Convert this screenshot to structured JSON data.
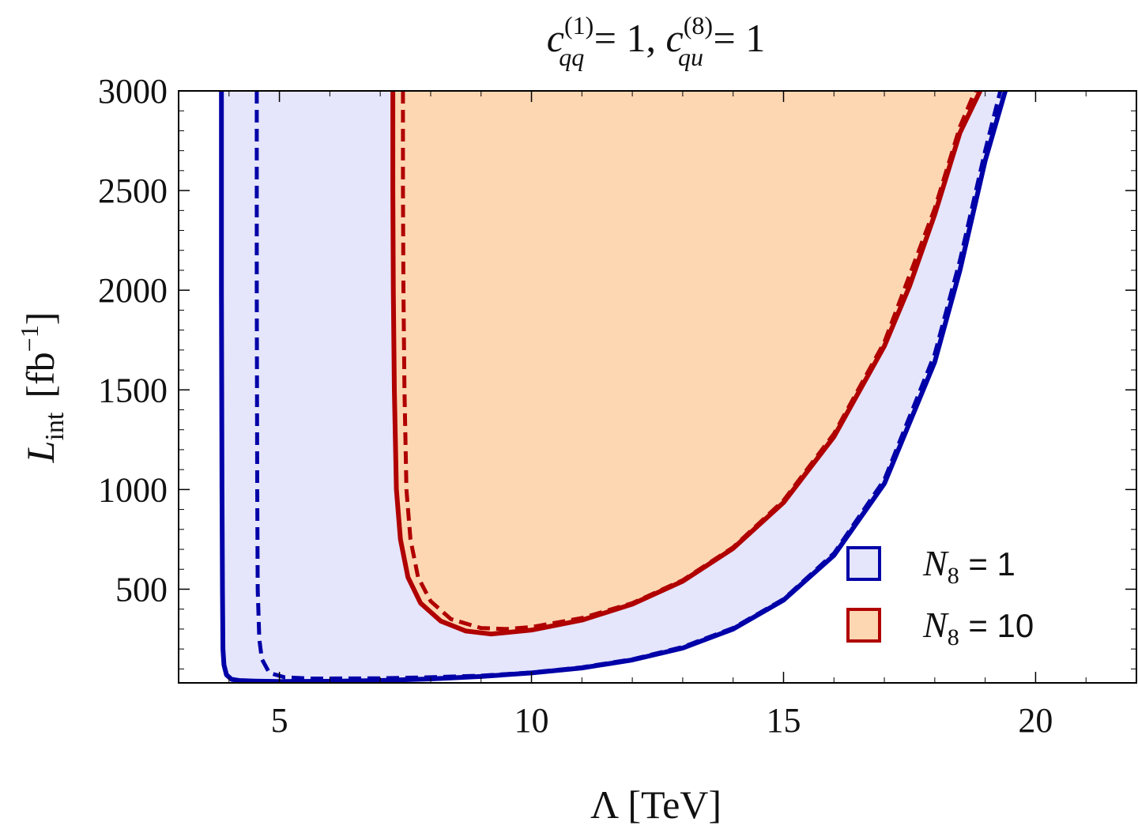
{
  "chart_data": {
    "type": "area",
    "title": "c_qq^(1) = 1, c_qu^(8) = 1",
    "title_parts": {
      "c1": "c",
      "c1_sup": "(1)",
      "c1_sub": "qq",
      "eq1": " = 1, ",
      "c2": "c",
      "c2_sup": "(8)",
      "c2_sub": "qu",
      "eq2": " = 1"
    },
    "xlabel": "Λ [TeV]",
    "ylabel": "L_int [fb^-1]",
    "ylabel_parts": {
      "L": "L",
      "L_sub": "int",
      "unit_open": "[fb",
      "unit_sup": "−1",
      "unit_close": "]"
    },
    "xlim": [
      3,
      22
    ],
    "ylim": [
      30,
      3000
    ],
    "x_ticks": [
      5,
      10,
      15,
      20
    ],
    "x_tick_labels": [
      "5",
      "10",
      "15",
      "20"
    ],
    "y_ticks": [
      500,
      1000,
      1500,
      2000,
      2500,
      3000
    ],
    "y_tick_labels": [
      "500",
      "1000",
      "1500",
      "2000",
      "2500",
      "3000"
    ],
    "grid": false,
    "legend_position": "lower-right",
    "series": [
      {
        "name": "N8 = 1",
        "legend_label": {
          "N": "N",
          "sub": "8",
          "rest": " = 1"
        },
        "color": "#0000a8",
        "fill": "#e5e5fb",
        "solid": {
          "x": [
            3.85,
            3.85,
            3.86,
            3.87,
            3.88,
            3.9,
            3.95,
            4.05,
            4.2,
            4.5,
            5.0,
            6.0,
            7.0,
            8.0,
            9.0,
            10.0,
            11.0,
            12.0,
            13.0,
            14.0,
            15.0,
            16.0,
            17.0,
            18.0,
            18.5,
            19.0,
            19.4
          ],
          "y": [
            3000,
            2000,
            1000,
            500,
            200,
            120,
            70,
            48,
            42,
            39,
            37,
            38,
            42,
            50,
            62,
            80,
            105,
            145,
            205,
            300,
            445,
            670,
            1030,
            1640,
            2100,
            2650,
            3000
          ]
        },
        "dashed": {
          "x": [
            4.55,
            4.55,
            4.56,
            4.57,
            4.6,
            4.65,
            4.8,
            5.1,
            5.6,
            6.0,
            7.0,
            8.0,
            9.0,
            10.0,
            11.0,
            12.0,
            13.0,
            14.0,
            15.0,
            16.0,
            17.0,
            18.0,
            18.5,
            19.0,
            19.3
          ],
          "y": [
            3000,
            2000,
            1000,
            500,
            250,
            150,
            80,
            58,
            52,
            52,
            53,
            58,
            66,
            82,
            108,
            148,
            210,
            305,
            450,
            680,
            1050,
            1680,
            2150,
            2700,
            3000
          ]
        }
      },
      {
        "name": "N8 = 10",
        "legend_label": {
          "N": "N",
          "sub": "8",
          "rest": " = 10"
        },
        "color": "#b00000",
        "fill": "#fdd6b2",
        "solid": {
          "x": [
            7.25,
            7.25,
            7.26,
            7.28,
            7.32,
            7.4,
            7.55,
            7.8,
            8.2,
            8.7,
            9.2,
            10.0,
            11.0,
            12.0,
            13.0,
            14.0,
            15.0,
            16.0,
            17.0,
            17.5,
            18.0,
            18.5,
            18.9
          ],
          "y": [
            3000,
            2500,
            2000,
            1500,
            1000,
            750,
            560,
            430,
            340,
            290,
            275,
            295,
            345,
            425,
            540,
            705,
            935,
            1265,
            1720,
            2020,
            2380,
            2790,
            3000
          ]
        },
        "dashed": {
          "x": [
            7.45,
            7.45,
            7.46,
            7.48,
            7.52,
            7.6,
            7.75,
            8.0,
            8.4,
            9.0,
            9.5,
            10.0,
            11.0,
            12.0,
            13.0,
            14.0,
            15.0,
            16.0,
            17.0,
            18.0,
            18.5,
            18.8
          ],
          "y": [
            3000,
            2500,
            2000,
            1500,
            1000,
            750,
            560,
            440,
            350,
            305,
            300,
            310,
            355,
            430,
            545,
            710,
            945,
            1280,
            1740,
            2410,
            2820,
            3000
          ]
        }
      }
    ]
  }
}
